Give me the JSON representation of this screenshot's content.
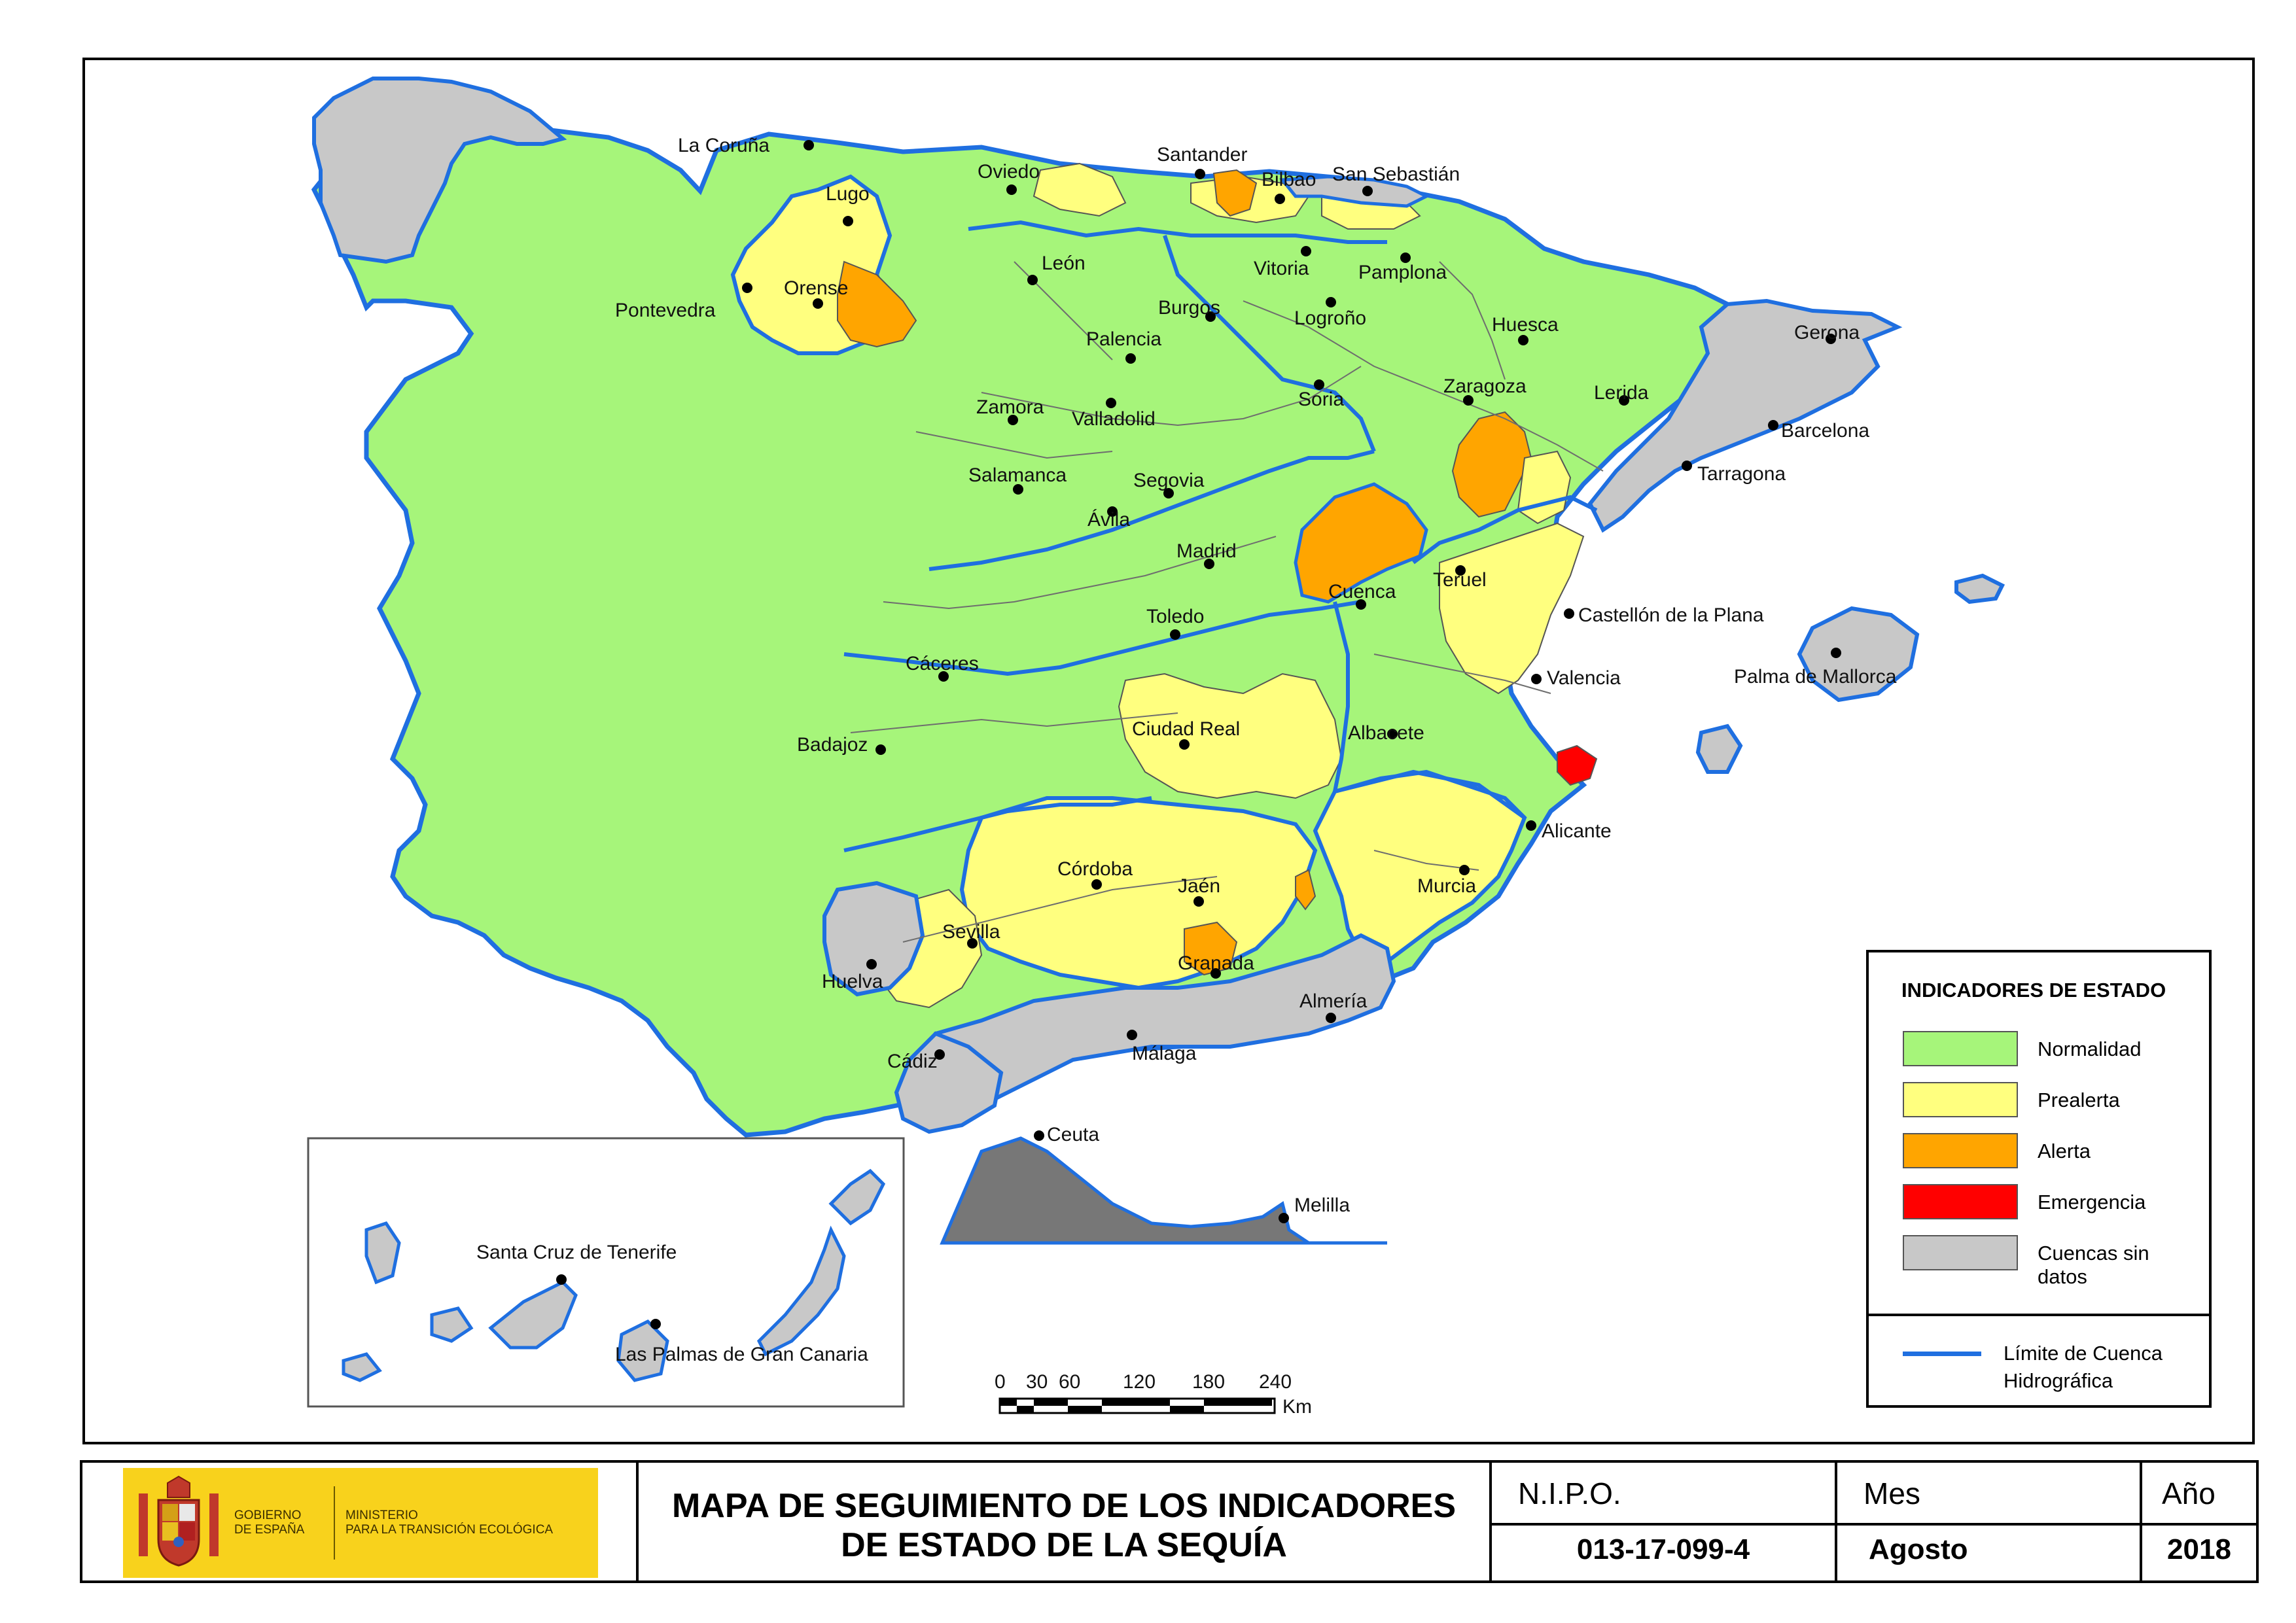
{
  "colors": {
    "normalidad": "#a6f57a",
    "prealerta": "#ffff7f",
    "alerta": "#ffa500",
    "emergencia": "#ff0000",
    "sin_datos": "#c8c8c8",
    "limite": "#1f6fe0"
  },
  "cities": {
    "la_coruna": "La Coruña",
    "lugo": "Lugo",
    "oviedo": "Oviedo",
    "santander": "Santander",
    "bilbao": "Bilbao",
    "san_sebastian": "San Sebastián",
    "pontevedra": "Pontevedra",
    "orense": "Orense",
    "leon": "León",
    "vitoria": "Vitoria",
    "pamplona": "Pamplona",
    "burgos": "Burgos",
    "logrono": "Logroño",
    "huesca": "Huesca",
    "gerona": "Gerona",
    "palencia": "Palencia",
    "zaragoza": "Zaragoza",
    "lerida": "Lerida",
    "soria": "Soria",
    "zamora": "Zamora",
    "valladolid": "Valladolid",
    "barcelona": "Barcelona",
    "tarragona": "Tarragona",
    "salamanca": "Salamanca",
    "segovia": "Segovia",
    "avila": "Ávila",
    "madrid": "Madrid",
    "teruel": "Teruel",
    "cuenca": "Cuenca",
    "castellon": "Castellón de la Plana",
    "toledo": "Toledo",
    "caceres": "Cáceres",
    "valencia": "Valencia",
    "palma": "Palma de Mallorca",
    "ciudad_real": "Ciudad Real",
    "albacete": "Albacete",
    "badajoz": "Badajoz",
    "alicante": "Alicante",
    "cordoba": "Córdoba",
    "jaen": "Jaén",
    "murcia": "Murcia",
    "sevilla": "Sevilla",
    "granada": "Granada",
    "huelva": "Huelva",
    "almeria": "Almería",
    "malaga": "Málaga",
    "cadiz": "Cádiz",
    "ceuta": "Ceuta",
    "melilla": "Melilla",
    "santa_cruz": "Santa Cruz de Tenerife",
    "las_palmas": "Las Palmas de Gran Canaria"
  },
  "scale": {
    "ticks": [
      "0",
      "30",
      "60",
      "120",
      "180",
      "240"
    ],
    "unit": "Km"
  },
  "legend": {
    "title": "INDICADORES DE ESTADO",
    "items": [
      "Normalidad",
      "Prealerta",
      "Alerta",
      "Emergencia",
      "Cuencas sin datos"
    ],
    "limite_line1": "Límite de Cuenca",
    "limite_line2": "Hidrográfica"
  },
  "footer": {
    "logo_gov_line1": "GOBIERNO",
    "logo_gov_line2": "DE ESPAÑA",
    "logo_min_line1": "MINISTERIO",
    "logo_min_line2": "PARA LA TRANSICIÓN ECOLÓGICA",
    "title_line1": "MAPA DE SEGUIMIENTO DE LOS INDICADORES",
    "title_line2": "DE ESTADO DE LA SEQUÍA",
    "nipo_label": "N.I.P.O.",
    "nipo_value": "013-17-099-4",
    "mes_label": "Mes",
    "mes_value": "Agosto",
    "ano_label": "Año",
    "ano_value": "2018"
  }
}
